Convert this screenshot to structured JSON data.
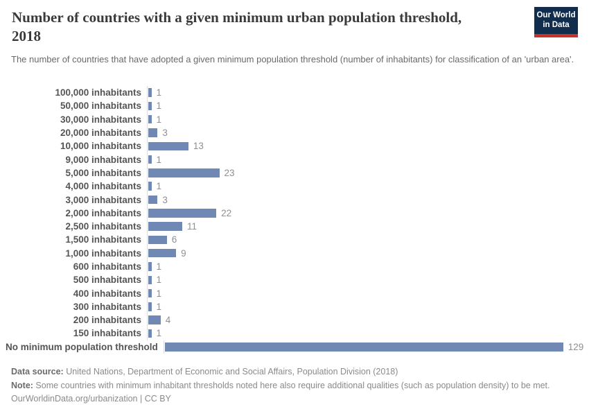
{
  "header": {
    "title": "Number of countries with a given minimum urban population threshold, 2018",
    "subtitle": "The number of countries that have adopted a given minimum population threshold (number of inhabitants) for classification of an 'urban area'.",
    "logo": {
      "line1": "Our World",
      "line2": "in Data"
    }
  },
  "chart_data": {
    "type": "bar",
    "orientation": "horizontal",
    "title": "Number of countries with a given minimum urban population threshold, 2018",
    "categories": [
      "100,000 inhabitants",
      "50,000 inhabitants",
      "30,000 inhabitants",
      "20,000 inhabitants",
      "10,000 inhabitants",
      "9,000 inhabitants",
      "5,000 inhabitants",
      "4,000 inhabitants",
      "3,000 inhabitants",
      "2,000 inhabitants",
      "2,500 inhabitants",
      "1,500 inhabitants",
      "1,000 inhabitants",
      "600 inhabitants",
      "500 inhabitants",
      "400 inhabitants",
      "300 inhabitants",
      "200 inhabitants",
      "150 inhabitants",
      "No minimum population threshold"
    ],
    "values": [
      1,
      1,
      1,
      3,
      13,
      1,
      23,
      1,
      3,
      22,
      11,
      6,
      9,
      1,
      1,
      1,
      1,
      4,
      1,
      129
    ],
    "xlim": [
      0,
      129
    ],
    "grid": false,
    "value_labels": true,
    "bar_color": "#7088b4"
  },
  "footer": {
    "data_source_label": "Data source:",
    "data_source_text": " United Nations, Department of Economic and Social Affairs, Population Division (2018)",
    "note_label": "Note:",
    "note_text": " Some countries with minimum inhabitant thresholds noted here also require additional qualities (such as population density) to be met.",
    "license": "OurWorldinData.org/urbanization | CC BY"
  },
  "colors": {
    "bar": "#7088b4",
    "logo_navy": "#102d4e",
    "logo_red": "#c2352c",
    "axis_line": "#dcdcdc"
  }
}
